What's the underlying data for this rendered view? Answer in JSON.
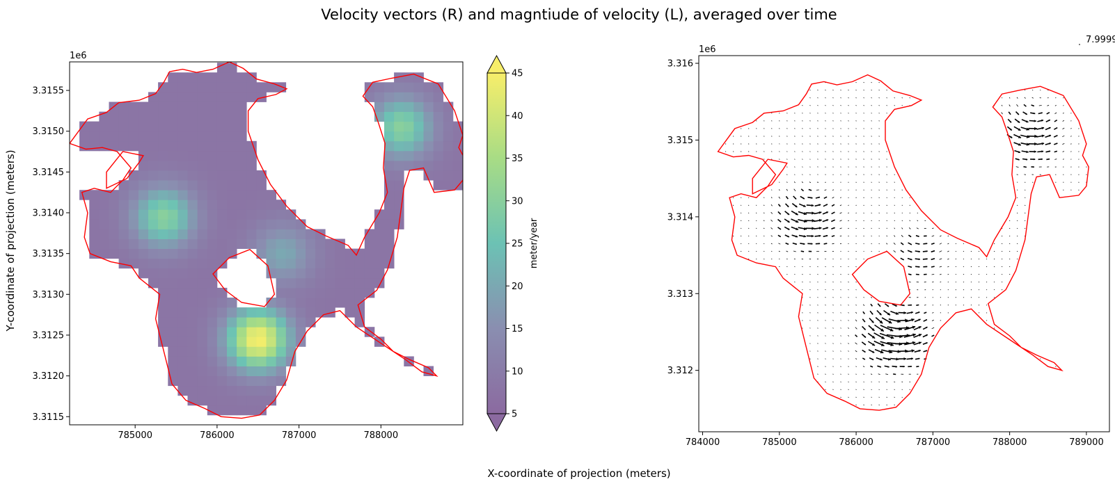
{
  "figure": {
    "title": "Velocity vectors (R) and magntiude of velocity (L), averaged over time",
    "xlabel": "X-coordinate of projection (meters)",
    "ylabel": "Y-coordinate of projection (meters)"
  },
  "colors": {
    "outline": "#ff0000",
    "arrows": "#000000",
    "cmap_low": "#8b6aa0",
    "cmap_mid": "#6cc2b4",
    "cmap_high": "#f7ee6a"
  },
  "chart_data": [
    {
      "type": "heatmap",
      "name": "magnitude-of-velocity",
      "title": "",
      "xlabel": "",
      "ylabel": "",
      "offset_text": "1e6",
      "xlim": [
        784200,
        789000
      ],
      "ylim": [
        3311400,
        3315850
      ],
      "xticks": [
        785000,
        786000,
        787000,
        788000
      ],
      "xtick_labels": [
        "785000",
        "786000",
        "787000",
        "788000"
      ],
      "yticks": [
        3311500,
        3312000,
        3312500,
        3313000,
        3313500,
        3314000,
        3314500,
        3315000,
        3315500
      ],
      "ytick_labels": [
        "3.3115",
        "3.3120",
        "3.3125",
        "3.3130",
        "3.3135",
        "3.3140",
        "3.3145",
        "3.3150",
        "3.3155"
      ],
      "colorbar": {
        "label": "meter/year",
        "vmin": 5,
        "vmax": 45,
        "extend": "both",
        "ticks": [
          5,
          10,
          15,
          20,
          25,
          30,
          35,
          40,
          45
        ]
      },
      "velocity_peaks": [
        {
          "x": 786500,
          "y": 3312450,
          "value": 45
        },
        {
          "x": 785350,
          "y": 3313950,
          "value": 30
        },
        {
          "x": 788250,
          "y": 3315050,
          "value": 30
        },
        {
          "x": 786800,
          "y": 3313500,
          "value": 20
        }
      ]
    },
    {
      "type": "quiver",
      "name": "velocity-vectors",
      "title": "",
      "xlabel": "",
      "ylabel": "",
      "offset_text": "1e6",
      "quiver_key_label": "7.9999",
      "xlim": [
        783950,
        789300
      ],
      "ylim": [
        3311200,
        3316100
      ],
      "xticks": [
        784000,
        785000,
        786000,
        787000,
        788000,
        789000
      ],
      "xtick_labels": [
        "784000",
        "785000",
        "786000",
        "787000",
        "788000",
        "789000"
      ],
      "yticks": [
        3312000,
        3313000,
        3314000,
        3315000,
        3316000
      ],
      "ytick_labels": [
        "3.312",
        "3.313",
        "3.314",
        "3.315",
        "3.316"
      ],
      "grid_spacing_m": 100
    }
  ]
}
